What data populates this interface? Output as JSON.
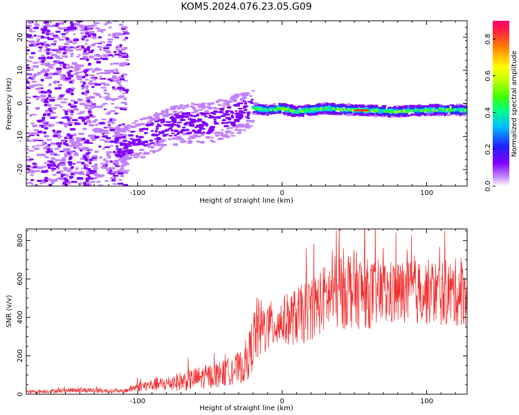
{
  "title": "KOM5.2024.076.23.05.G09",
  "chart_data": [
    {
      "type": "heatmap",
      "xlabel": "Height of straight line (km)",
      "ylabel": "Frequency (Hz)",
      "xlim": [
        -177,
        128
      ],
      "ylim": [
        -25,
        25
      ],
      "x_ticks": [
        -100,
        0,
        100
      ],
      "y_ticks": [
        -20,
        -10,
        0,
        10,
        20
      ],
      "colorbar": {
        "label": "Normalized spectral amplitude",
        "range": [
          0.0,
          0.9
        ],
        "ticks": [
          "0.0",
          "0.2",
          "0.4",
          "0.6",
          "0.8"
        ],
        "colors": [
          "#ffffff",
          "#c080ff",
          "#8000ff",
          "#3030ff",
          "#00c0ff",
          "#00ff80",
          "#40ff00",
          "#c0ff00",
          "#ffff00",
          "#ffa000",
          "#ff4000",
          "#ff0060"
        ]
      },
      "ridge": [
        {
          "x": -110,
          "f": -13
        },
        {
          "x": -90,
          "f": -9
        },
        {
          "x": -70,
          "f": -6
        },
        {
          "x": -50,
          "f": -6
        },
        {
          "x": -35,
          "f": -4
        },
        {
          "x": -20,
          "f": -1.5
        },
        {
          "x": -10,
          "f": -2
        },
        {
          "x": 0,
          "f": -1.5
        },
        {
          "x": 10,
          "f": -2.5
        },
        {
          "x": 30,
          "f": -1.5
        },
        {
          "x": 50,
          "f": -2
        },
        {
          "x": 80,
          "f": -2.5
        },
        {
          "x": 100,
          "f": -2
        },
        {
          "x": 128,
          "f": -2
        }
      ]
    },
    {
      "type": "line",
      "xlabel": "Height of straight line (km)",
      "ylabel": "SNR (v/v)",
      "xlim": [
        -177,
        128
      ],
      "ylim": [
        0,
        860
      ],
      "x_ticks": [
        -100,
        0,
        100
      ],
      "y_ticks": [
        0,
        200,
        400,
        600,
        800
      ],
      "color": "#f03030",
      "envelope": [
        {
          "x": -177,
          "mean": 12,
          "spread": 8
        },
        {
          "x": -140,
          "mean": 22,
          "spread": 14
        },
        {
          "x": -110,
          "mean": 15,
          "spread": 10
        },
        {
          "x": -100,
          "mean": 40,
          "spread": 25
        },
        {
          "x": -80,
          "mean": 55,
          "spread": 40
        },
        {
          "x": -60,
          "mean": 80,
          "spread": 60
        },
        {
          "x": -40,
          "mean": 110,
          "spread": 70
        },
        {
          "x": -25,
          "mean": 150,
          "spread": 90
        },
        {
          "x": -18,
          "mean": 330,
          "spread": 180
        },
        {
          "x": -10,
          "mean": 350,
          "spread": 130
        },
        {
          "x": 0,
          "mean": 380,
          "spread": 130
        },
        {
          "x": 15,
          "mean": 420,
          "spread": 160
        },
        {
          "x": 30,
          "mean": 500,
          "spread": 180
        },
        {
          "x": 45,
          "mean": 560,
          "spread": 220
        },
        {
          "x": 60,
          "mean": 520,
          "spread": 180
        },
        {
          "x": 90,
          "mean": 530,
          "spread": 170
        },
        {
          "x": 128,
          "mean": 530,
          "spread": 180
        }
      ]
    }
  ]
}
